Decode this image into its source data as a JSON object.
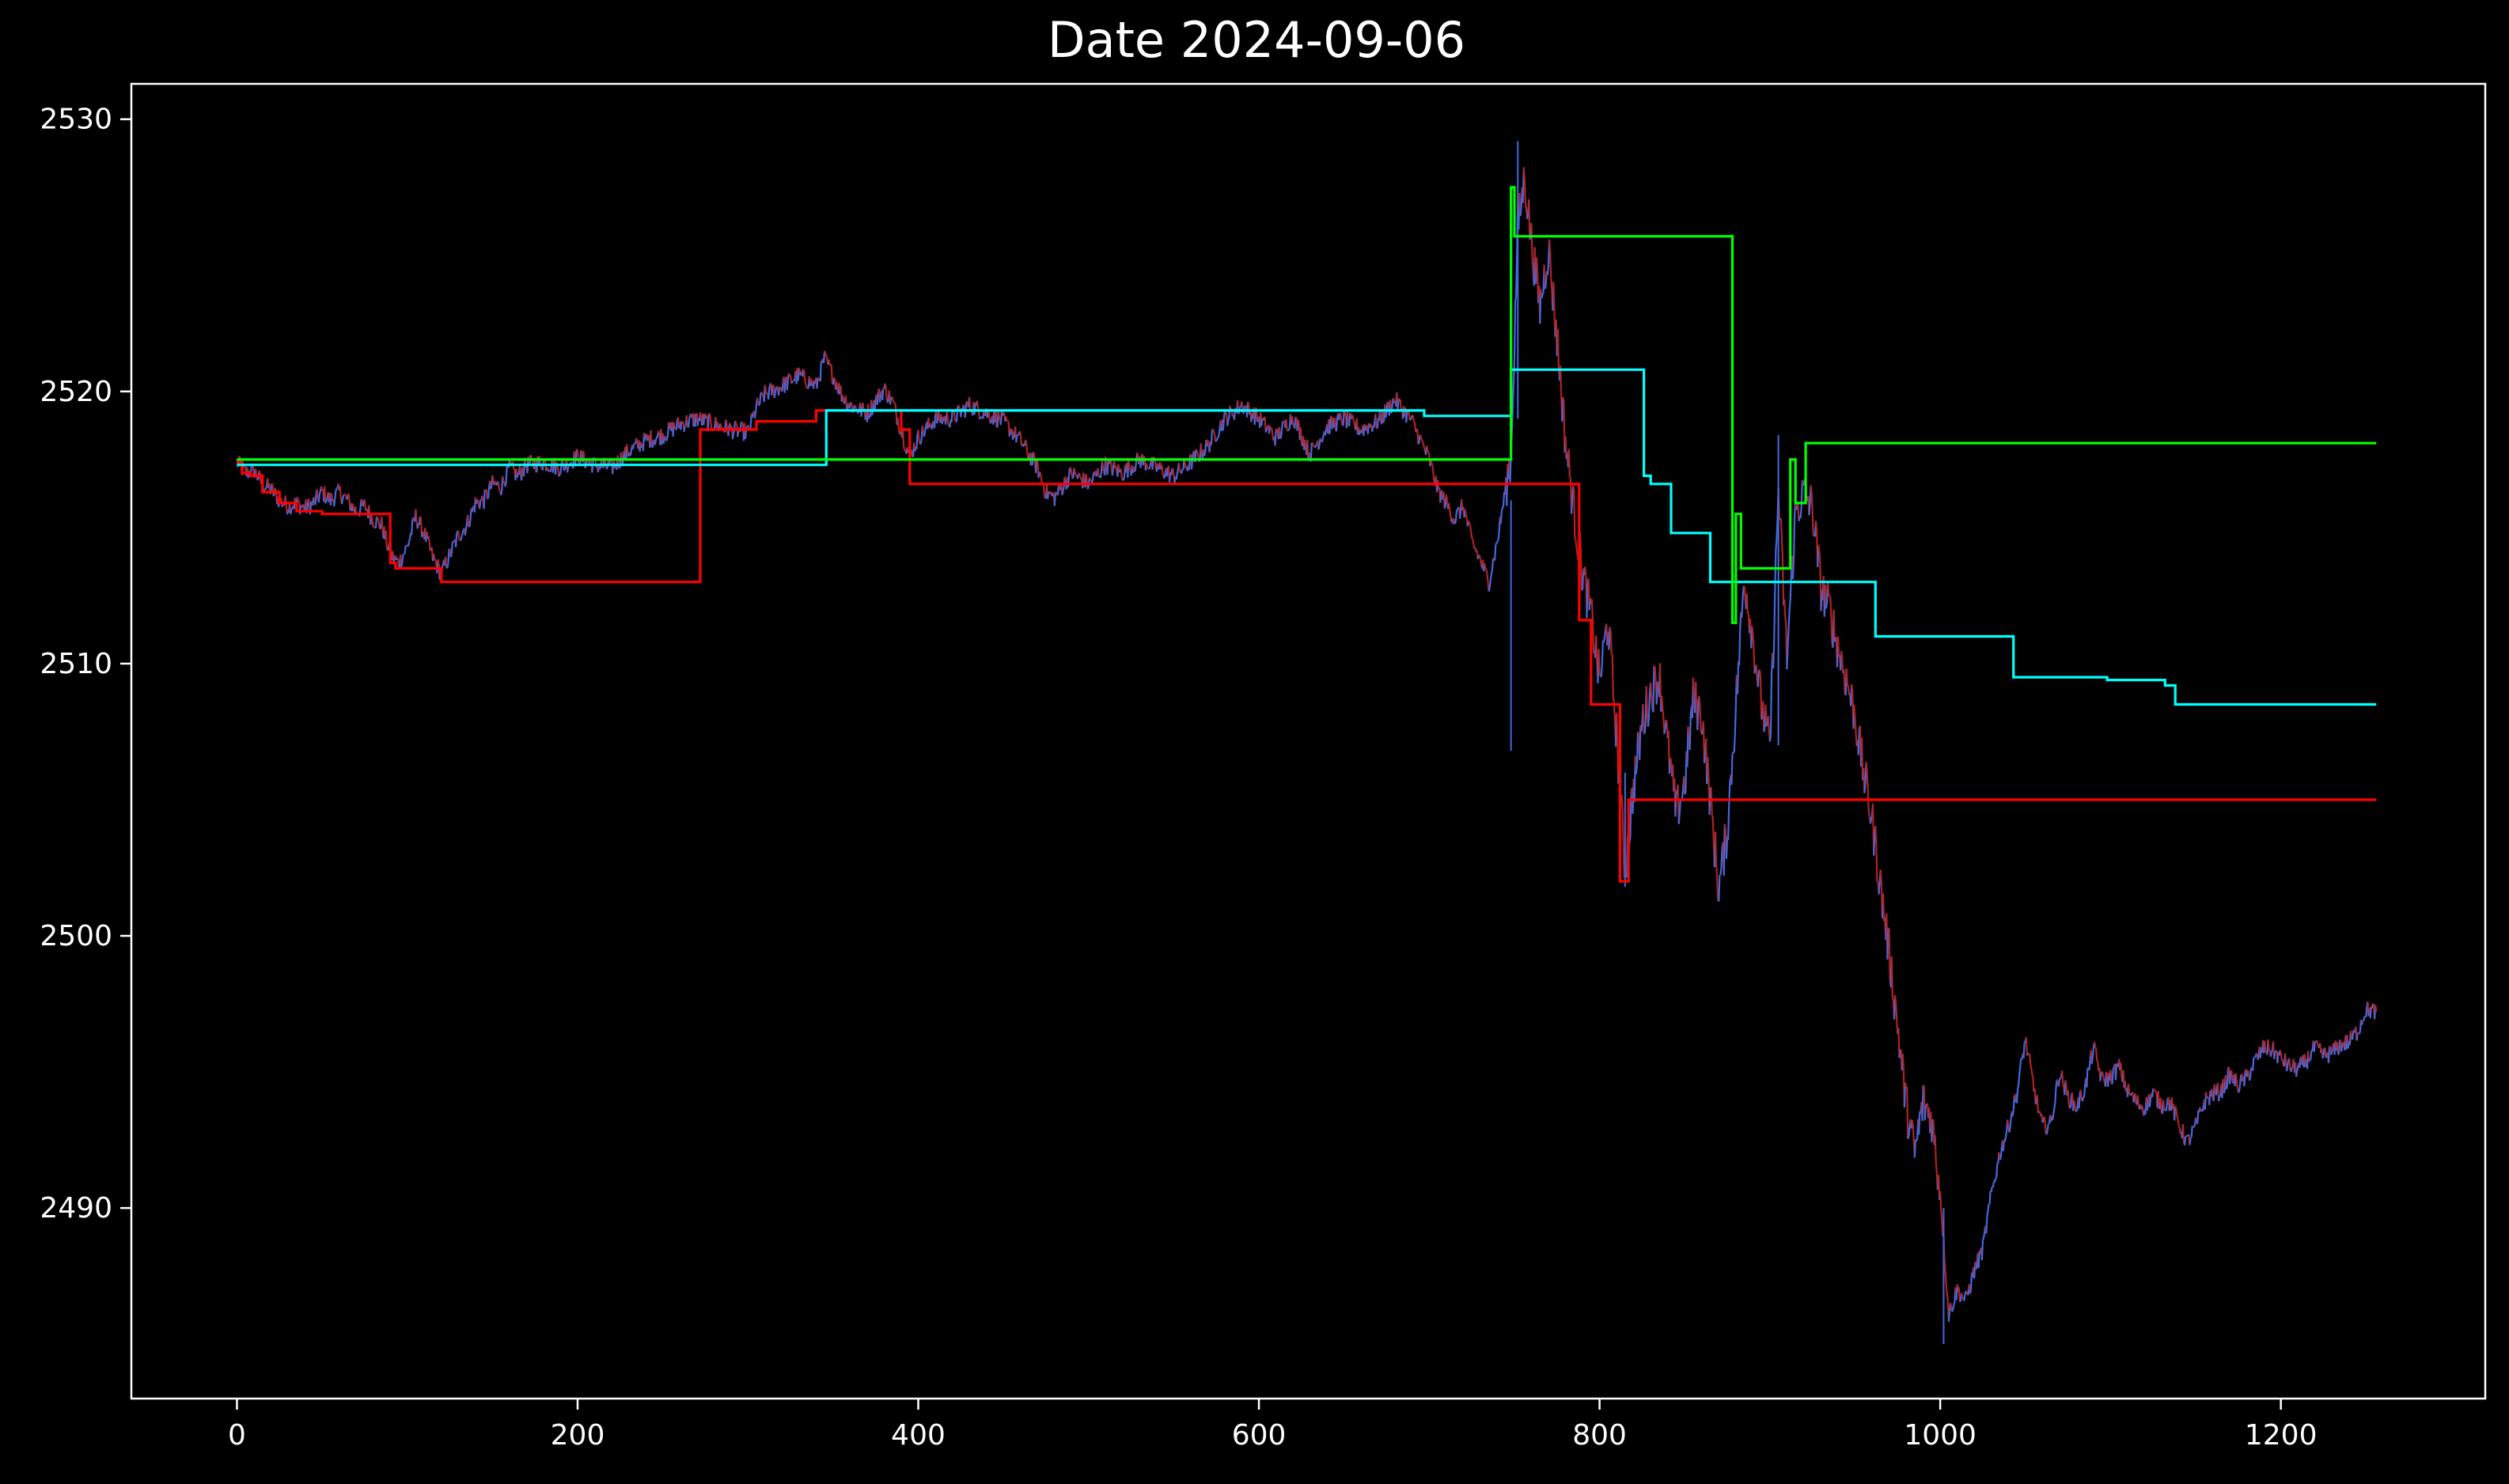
{
  "chart_data": {
    "type": "line",
    "title": "Date 2024-09-06",
    "xlabel": "",
    "ylabel": "",
    "xlim": [
      -62,
      1320
    ],
    "ylim": [
      2483.0,
      2531.3
    ],
    "xticks": [
      0,
      200,
      400,
      600,
      800,
      1000,
      1200
    ],
    "yticks": [
      2490,
      2500,
      2510,
      2520,
      2530
    ],
    "grid": false,
    "legend": "none",
    "colors": {
      "background": "#000000",
      "axes": "#ffffff",
      "price_up": "#4169e1",
      "price_down": "#b22222",
      "red_line": "#ff0000",
      "cyan_line": "#00ffff",
      "green_line": "#00ff00"
    },
    "price_anchors": [
      [
        0,
        2517.4
      ],
      [
        5,
        2517.0
      ],
      [
        10,
        2517.1
      ],
      [
        15,
        2516.6
      ],
      [
        20,
        2516.4
      ],
      [
        25,
        2516.0
      ],
      [
        30,
        2515.8
      ],
      [
        35,
        2515.9
      ],
      [
        40,
        2515.7
      ],
      [
        45,
        2515.9
      ],
      [
        50,
        2516.3
      ],
      [
        55,
        2516.0
      ],
      [
        60,
        2516.3
      ],
      [
        65,
        2516.0
      ],
      [
        70,
        2515.6
      ],
      [
        75,
        2515.8
      ],
      [
        80,
        2515.3
      ],
      [
        85,
        2515.1
      ],
      [
        90,
        2514.0
      ],
      [
        95,
        2513.7
      ],
      [
        100,
        2514.3
      ],
      [
        105,
        2515.4
      ],
      [
        110,
        2514.8
      ],
      [
        115,
        2513.9
      ],
      [
        120,
        2513.3
      ],
      [
        125,
        2514.0
      ],
      [
        130,
        2514.7
      ],
      [
        135,
        2515.1
      ],
      [
        140,
        2515.9
      ],
      [
        145,
        2516.0
      ],
      [
        150,
        2516.6
      ],
      [
        155,
        2516.5
      ],
      [
        160,
        2517.2
      ],
      [
        165,
        2516.9
      ],
      [
        170,
        2517.3
      ],
      [
        180,
        2517.4
      ],
      [
        190,
        2517.2
      ],
      [
        200,
        2517.6
      ],
      [
        210,
        2517.3
      ],
      [
        220,
        2517.2
      ],
      [
        230,
        2517.8
      ],
      [
        240,
        2518.2
      ],
      [
        250,
        2518.4
      ],
      [
        260,
        2518.8
      ],
      [
        270,
        2519.0
      ],
      [
        280,
        2518.8
      ],
      [
        290,
        2518.6
      ],
      [
        300,
        2518.5
      ],
      [
        305,
        2519.4
      ],
      [
        310,
        2519.9
      ],
      [
        320,
        2520.2
      ],
      [
        330,
        2520.6
      ],
      [
        340,
        2520.2
      ],
      [
        345,
        2521.2
      ],
      [
        350,
        2520.6
      ],
      [
        355,
        2519.9
      ],
      [
        360,
        2519.5
      ],
      [
        370,
        2519.2
      ],
      [
        380,
        2520.1
      ],
      [
        385,
        2519.6
      ],
      [
        390,
        2518.6
      ],
      [
        395,
        2517.6
      ],
      [
        400,
        2518.3
      ],
      [
        410,
        2519.0
      ],
      [
        420,
        2519.0
      ],
      [
        430,
        2519.5
      ],
      [
        440,
        2519.2
      ],
      [
        450,
        2518.9
      ],
      [
        460,
        2518.2
      ],
      [
        470,
        2517.2
      ],
      [
        475,
        2516.3
      ],
      [
        480,
        2516.1
      ],
      [
        490,
        2517.0
      ],
      [
        500,
        2516.6
      ],
      [
        510,
        2517.3
      ],
      [
        520,
        2517.0
      ],
      [
        530,
        2517.5
      ],
      [
        540,
        2517.2
      ],
      [
        550,
        2516.9
      ],
      [
        560,
        2517.4
      ],
      [
        570,
        2518.0
      ],
      [
        580,
        2519.0
      ],
      [
        590,
        2519.5
      ],
      [
        600,
        2519.0
      ],
      [
        610,
        2518.3
      ],
      [
        620,
        2519.1
      ],
      [
        630,
        2517.7
      ],
      [
        640,
        2518.7
      ],
      [
        650,
        2519.0
      ],
      [
        660,
        2518.6
      ],
      [
        670,
        2518.9
      ],
      [
        680,
        2519.7
      ],
      [
        690,
        2518.9
      ],
      [
        700,
        2517.5
      ],
      [
        705,
        2516.4
      ],
      [
        710,
        2515.9
      ],
      [
        715,
        2515.3
      ],
      [
        720,
        2515.8
      ],
      [
        725,
        2514.5
      ],
      [
        730,
        2513.8
      ],
      [
        735,
        2513.0
      ],
      [
        740,
        2514.5
      ],
      [
        745,
        2516.5
      ],
      [
        748,
        2517.6
      ],
      [
        752,
        2526.0
      ],
      [
        756,
        2527.9
      ],
      [
        760,
        2525.5
      ],
      [
        765,
        2523.1
      ],
      [
        770,
        2525.3
      ],
      [
        775,
        2522.0
      ],
      [
        780,
        2518.2
      ],
      [
        785,
        2515.6
      ],
      [
        790,
        2513.3
      ],
      [
        795,
        2511.8
      ],
      [
        800,
        2509.4
      ],
      [
        805,
        2511.6
      ],
      [
        810,
        2507.4
      ],
      [
        815,
        2502.3
      ],
      [
        820,
        2505.5
      ],
      [
        825,
        2507.8
      ],
      [
        830,
        2508.9
      ],
      [
        835,
        2509.6
      ],
      [
        840,
        2507.0
      ],
      [
        845,
        2504.5
      ],
      [
        850,
        2505.6
      ],
      [
        855,
        2508.7
      ],
      [
        860,
        2508.1
      ],
      [
        865,
        2505.0
      ],
      [
        870,
        2501.7
      ],
      [
        875,
        2503.9
      ],
      [
        880,
        2508.4
      ],
      [
        885,
        2513.2
      ],
      [
        890,
        2511.0
      ],
      [
        895,
        2508.5
      ],
      [
        900,
        2506.9
      ],
      [
        905,
        2516.4
      ],
      [
        910,
        2510.2
      ],
      [
        915,
        2515.5
      ],
      [
        920,
        2516.3
      ],
      [
        925,
        2515.7
      ],
      [
        930,
        2512.8
      ],
      [
        935,
        2512.0
      ],
      [
        940,
        2510.6
      ],
      [
        945,
        2509.4
      ],
      [
        950,
        2508.1
      ],
      [
        955,
        2506.0
      ],
      [
        960,
        2504.3
      ],
      [
        965,
        2501.8
      ],
      [
        970,
        2499.4
      ],
      [
        975,
        2496.7
      ],
      [
        980,
        2493.8
      ],
      [
        985,
        2492.0
      ],
      [
        990,
        2493.9
      ],
      [
        995,
        2493.3
      ],
      [
        1000,
        2490.6
      ],
      [
        1005,
        2486.1
      ],
      [
        1010,
        2487.0
      ],
      [
        1015,
        2486.6
      ],
      [
        1020,
        2487.7
      ],
      [
        1025,
        2488.5
      ],
      [
        1030,
        2490.5
      ],
      [
        1035,
        2492.0
      ],
      [
        1040,
        2493.0
      ],
      [
        1045,
        2494.2
      ],
      [
        1050,
        2496.2
      ],
      [
        1055,
        2494.4
      ],
      [
        1060,
        2493.0
      ],
      [
        1065,
        2493.1
      ],
      [
        1070,
        2495.0
      ],
      [
        1075,
        2494.1
      ],
      [
        1080,
        2493.7
      ],
      [
        1085,
        2494.4
      ],
      [
        1090,
        2495.9
      ],
      [
        1095,
        2494.7
      ],
      [
        1100,
        2494.8
      ],
      [
        1105,
        2495.2
      ],
      [
        1110,
        2494.3
      ],
      [
        1115,
        2493.9
      ],
      [
        1120,
        2493.7
      ],
      [
        1125,
        2494.2
      ],
      [
        1130,
        2493.8
      ],
      [
        1135,
        2493.9
      ],
      [
        1140,
        2493.1
      ],
      [
        1145,
        2492.4
      ],
      [
        1150,
        2493.0
      ],
      [
        1155,
        2493.9
      ],
      [
        1160,
        2494.2
      ],
      [
        1165,
        2494.3
      ],
      [
        1170,
        2494.9
      ],
      [
        1175,
        2494.5
      ],
      [
        1180,
        2494.8
      ],
      [
        1185,
        2495.4
      ],
      [
        1190,
        2495.9
      ],
      [
        1195,
        2495.8
      ],
      [
        1200,
        2495.5
      ],
      [
        1205,
        2495.2
      ],
      [
        1210,
        2495.1
      ],
      [
        1215,
        2495.4
      ],
      [
        1220,
        2495.9
      ],
      [
        1225,
        2495.6
      ],
      [
        1230,
        2495.7
      ],
      [
        1235,
        2496.0
      ],
      [
        1240,
        2496.1
      ],
      [
        1245,
        2496.5
      ],
      [
        1250,
        2497.3
      ],
      [
        1256,
        2497.2
      ]
    ],
    "series": [
      {
        "color": "#ff0000",
        "points": [
          [
            0,
            2517.4
          ],
          [
            3,
            2517.4
          ],
          [
            3,
            2517.0
          ],
          [
            8,
            2517.0
          ],
          [
            8,
            2516.9
          ],
          [
            15,
            2516.9
          ],
          [
            15,
            2516.3
          ],
          [
            25,
            2516.3
          ],
          [
            25,
            2515.9
          ],
          [
            35,
            2515.9
          ],
          [
            35,
            2515.6
          ],
          [
            50,
            2515.6
          ],
          [
            50,
            2515.5
          ],
          [
            90,
            2515.5
          ],
          [
            90,
            2513.7
          ],
          [
            93,
            2513.7
          ],
          [
            93,
            2513.5
          ],
          [
            120,
            2513.5
          ],
          [
            120,
            2513.0
          ],
          [
            272,
            2513.0
          ],
          [
            272,
            2518.6
          ],
          [
            305,
            2518.6
          ],
          [
            305,
            2518.9
          ],
          [
            340,
            2518.9
          ],
          [
            340,
            2519.3
          ],
          [
            390,
            2519.3
          ],
          [
            390,
            2518.6
          ],
          [
            395,
            2518.6
          ],
          [
            395,
            2516.6
          ],
          [
            788,
            2516.6
          ],
          [
            788,
            2511.6
          ],
          [
            795,
            2511.6
          ],
          [
            795,
            2508.5
          ],
          [
            812,
            2508.5
          ],
          [
            812,
            2502.0
          ],
          [
            817,
            2502.0
          ],
          [
            817,
            2505.0
          ],
          [
            1256,
            2505.0
          ]
        ]
      },
      {
        "color": "#00ffff",
        "points": [
          [
            0,
            2517.3
          ],
          [
            346,
            2517.3
          ],
          [
            346,
            2519.3
          ],
          [
            697,
            2519.3
          ],
          [
            697,
            2519.1
          ],
          [
            748,
            2519.1
          ],
          [
            748,
            2520.8
          ],
          [
            826,
            2520.8
          ],
          [
            826,
            2516.9
          ],
          [
            830,
            2516.9
          ],
          [
            830,
            2516.6
          ],
          [
            842,
            2516.6
          ],
          [
            842,
            2514.8
          ],
          [
            865,
            2514.8
          ],
          [
            865,
            2513.0
          ],
          [
            962,
            2513.0
          ],
          [
            962,
            2511.0
          ],
          [
            1043,
            2511.0
          ],
          [
            1043,
            2509.5
          ],
          [
            1098,
            2509.5
          ],
          [
            1098,
            2509.4
          ],
          [
            1132,
            2509.4
          ],
          [
            1132,
            2509.2
          ],
          [
            1138,
            2509.2
          ],
          [
            1138,
            2508.5
          ],
          [
            1256,
            2508.5
          ]
        ]
      },
      {
        "color": "#00ff00",
        "points": [
          [
            0,
            2517.5
          ],
          [
            748,
            2517.5
          ],
          [
            748,
            2527.5
          ],
          [
            750,
            2527.5
          ],
          [
            750,
            2525.7
          ],
          [
            878,
            2525.7
          ],
          [
            878,
            2511.5
          ],
          [
            880,
            2511.5
          ],
          [
            880,
            2515.5
          ],
          [
            883,
            2515.5
          ],
          [
            883,
            2513.5
          ],
          [
            912,
            2513.5
          ],
          [
            912,
            2517.5
          ],
          [
            915,
            2517.5
          ],
          [
            915,
            2515.9
          ],
          [
            921,
            2515.9
          ],
          [
            921,
            2518.1
          ],
          [
            1256,
            2518.1
          ]
        ]
      }
    ]
  }
}
